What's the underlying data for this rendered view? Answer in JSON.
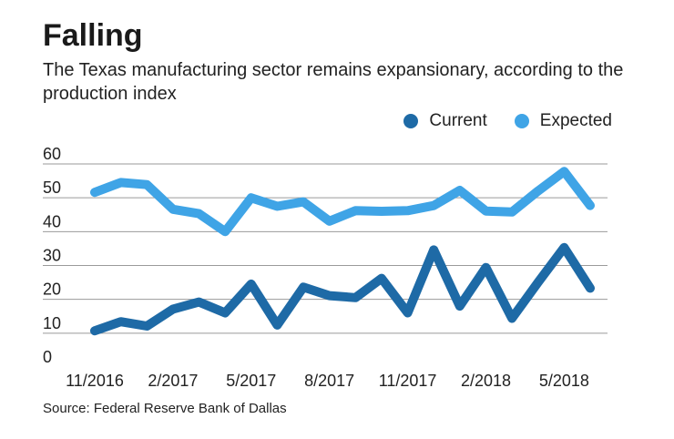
{
  "title": "Falling",
  "subtitle": "The Texas manufacturing sector remains expansionary, according to the production index",
  "source": "Source: Federal Reserve Bank of Dallas",
  "colors": {
    "current": "#1e6aa6",
    "expected": "#3fa4e6",
    "grid": "#9a9a9a",
    "text": "#222222"
  },
  "chart_data": {
    "type": "line",
    "x_tick_labels": [
      "11/2016",
      "2/2017",
      "5/2017",
      "8/2017",
      "11/2017",
      "2/2018",
      "5/2018"
    ],
    "x_tick_positions": [
      0,
      3,
      6,
      9,
      12,
      15,
      18
    ],
    "y_ticks": [
      0,
      10,
      20,
      30,
      40,
      50,
      60
    ],
    "ylim": [
      0,
      60
    ],
    "grid": true,
    "legend_position": "top-right",
    "series": [
      {
        "name": "Current",
        "color": "#1e6aa6",
        "values": [
          10.7,
          13.4,
          12.1,
          17.1,
          19.2,
          16.0,
          24.5,
          12.4,
          23.6,
          21.1,
          20.5,
          26.2,
          16.0,
          34.6,
          18.0,
          29.4,
          14.4,
          25.0,
          35.3,
          23.3
        ]
      },
      {
        "name": "Expected",
        "color": "#3fa4e6",
        "values": [
          51.6,
          54.5,
          53.9,
          46.6,
          45.3,
          40.0,
          50.0,
          47.5,
          48.8,
          43.1,
          46.2,
          46.0,
          46.2,
          47.7,
          52.2,
          46.1,
          45.8,
          52.0,
          57.8,
          47.7
        ]
      }
    ]
  }
}
